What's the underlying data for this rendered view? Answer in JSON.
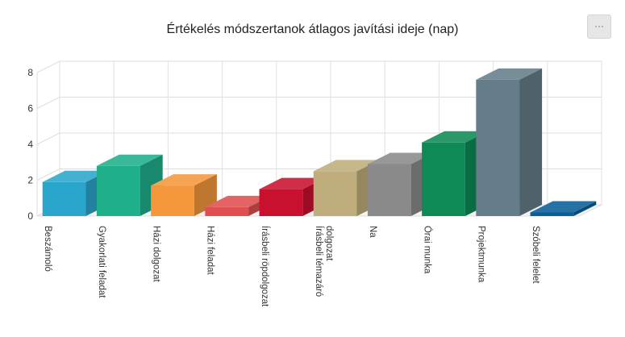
{
  "menu_label": "···",
  "chart_data": {
    "type": "bar",
    "title": "Értékelés módszertanok átlagos javítási ideje (nap)",
    "categories": [
      "Beszámoló",
      "Gyakorlati feladat",
      "Házi dolgozat",
      "Házi feladat",
      "Írásbeli röpdolgozat",
      "Írásbeli témazáró dolgozat",
      "Na",
      "Órai munka",
      "Projektmunka",
      "Szóbeli felelet"
    ],
    "category_lines": [
      [
        "Beszámoló"
      ],
      [
        "Gyakorlati feladat"
      ],
      [
        "Házi dolgozat"
      ],
      [
        "Házi feladat"
      ],
      [
        "Írásbeli röpdolgozat"
      ],
      [
        "Írásbeli témazáró",
        "dolgozat"
      ],
      [
        "Na"
      ],
      [
        "Órai munka"
      ],
      [
        "Projektmunka"
      ],
      [
        "Szóbeli felelet"
      ]
    ],
    "values": [
      1.9,
      2.8,
      1.7,
      0.5,
      1.5,
      2.5,
      2.9,
      4.1,
      7.6,
      0.2
    ],
    "colors": [
      "#2aa6cc",
      "#1fb08b",
      "#f5983c",
      "#e04e50",
      "#c9102f",
      "#bfae7b",
      "#8a8a8a",
      "#0d8a55",
      "#657d8a",
      "#0a5f98"
    ],
    "yticks": [
      0,
      2,
      4,
      6,
      8
    ],
    "ylim": [
      0,
      8
    ],
    "xlabel": "",
    "ylabel": "",
    "grid": true,
    "style": "3d"
  }
}
